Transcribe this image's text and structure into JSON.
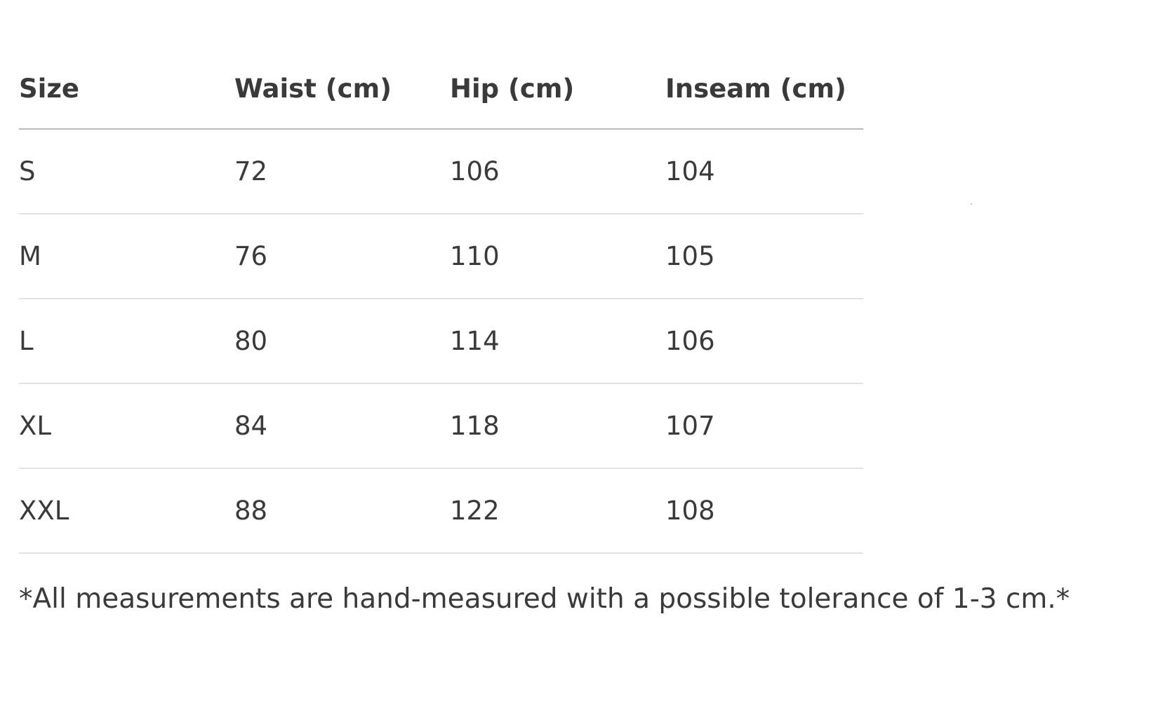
{
  "table": {
    "headers": [
      "Size",
      "Waist (cm)",
      "Hip (cm)",
      "Inseam (cm)"
    ],
    "rows": [
      [
        "S",
        "72",
        "106",
        "104"
      ],
      [
        "M",
        "76",
        "110",
        "105"
      ],
      [
        "L",
        "80",
        "114",
        "106"
      ],
      [
        "XL",
        "84",
        "118",
        "107"
      ],
      [
        "XXL",
        "88",
        "122",
        "108"
      ]
    ]
  },
  "note": "*All measurements are hand-measured with a possible tolerance of 1-3 cm.*",
  "colors": {
    "text": "#3a3a3a",
    "header_rule": "#b8b8b8",
    "row_rule": "#e2e2e2"
  }
}
